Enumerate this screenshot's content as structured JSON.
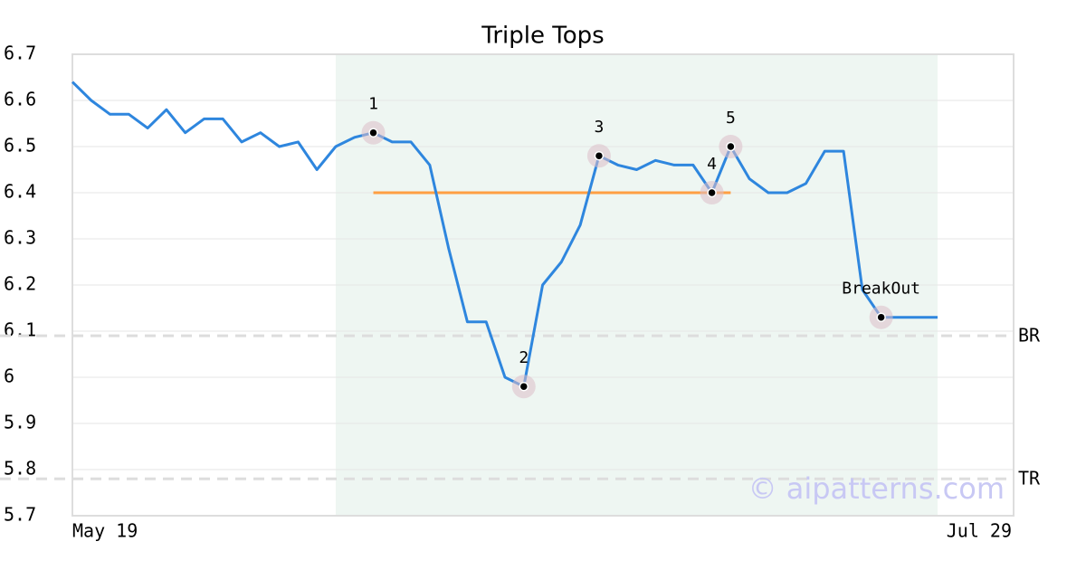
{
  "chart_data": {
    "type": "line",
    "title": "Triple Tops",
    "categories": [
      "May 19",
      null,
      null,
      null,
      null,
      null,
      null,
      null,
      null,
      null,
      null,
      null,
      null,
      null,
      null,
      null,
      null,
      null,
      null,
      null,
      null,
      null,
      null,
      null,
      null,
      null,
      null,
      null,
      null,
      null,
      null,
      null,
      null,
      null,
      null,
      null,
      null,
      null,
      null,
      null,
      null,
      null,
      null,
      null,
      null,
      null,
      "Jul 29"
    ],
    "series": [
      {
        "color": "#2e86de",
        "values": [
          6.64,
          6.6,
          6.57,
          6.57,
          6.54,
          6.58,
          6.53,
          6.56,
          6.56,
          6.51,
          6.53,
          6.5,
          6.51,
          6.45,
          6.5,
          6.52,
          6.53,
          6.51,
          6.51,
          6.46,
          6.28,
          6.12,
          6.12,
          6.0,
          5.98,
          6.2,
          6.25,
          6.33,
          6.48,
          6.46,
          6.45,
          6.47,
          6.46,
          6.46,
          6.4,
          6.5,
          6.43,
          6.4,
          6.4,
          6.42,
          6.49,
          6.49,
          6.19,
          6.13,
          6.13,
          6.13,
          6.13
        ]
      }
    ],
    "annotations": [
      {
        "label": "1",
        "index": 16
      },
      {
        "label": "2",
        "index": 24
      },
      {
        "label": "3",
        "index": 28
      },
      {
        "label": "4",
        "index": 34
      },
      {
        "label": "5",
        "index": 35
      },
      {
        "label": "BreakOut",
        "index": 43
      }
    ],
    "resistance": {
      "value": 6.4,
      "from": 16,
      "to": 35,
      "color": "#ff9f43"
    },
    "shade": {
      "from": 14,
      "to": 46,
      "color": "#eef6f2"
    },
    "hlines": [
      {
        "label": "BR",
        "value": 6.09
      },
      {
        "label": "TR",
        "value": 5.78
      }
    ],
    "watermark": "© aipatterns.com",
    "ylim": [
      5.7,
      6.7
    ],
    "yticks": [
      5.7,
      5.8,
      5.9,
      6.0,
      6.1,
      6.2,
      6.3,
      6.4,
      6.5,
      6.6,
      6.7
    ],
    "grid": true
  }
}
